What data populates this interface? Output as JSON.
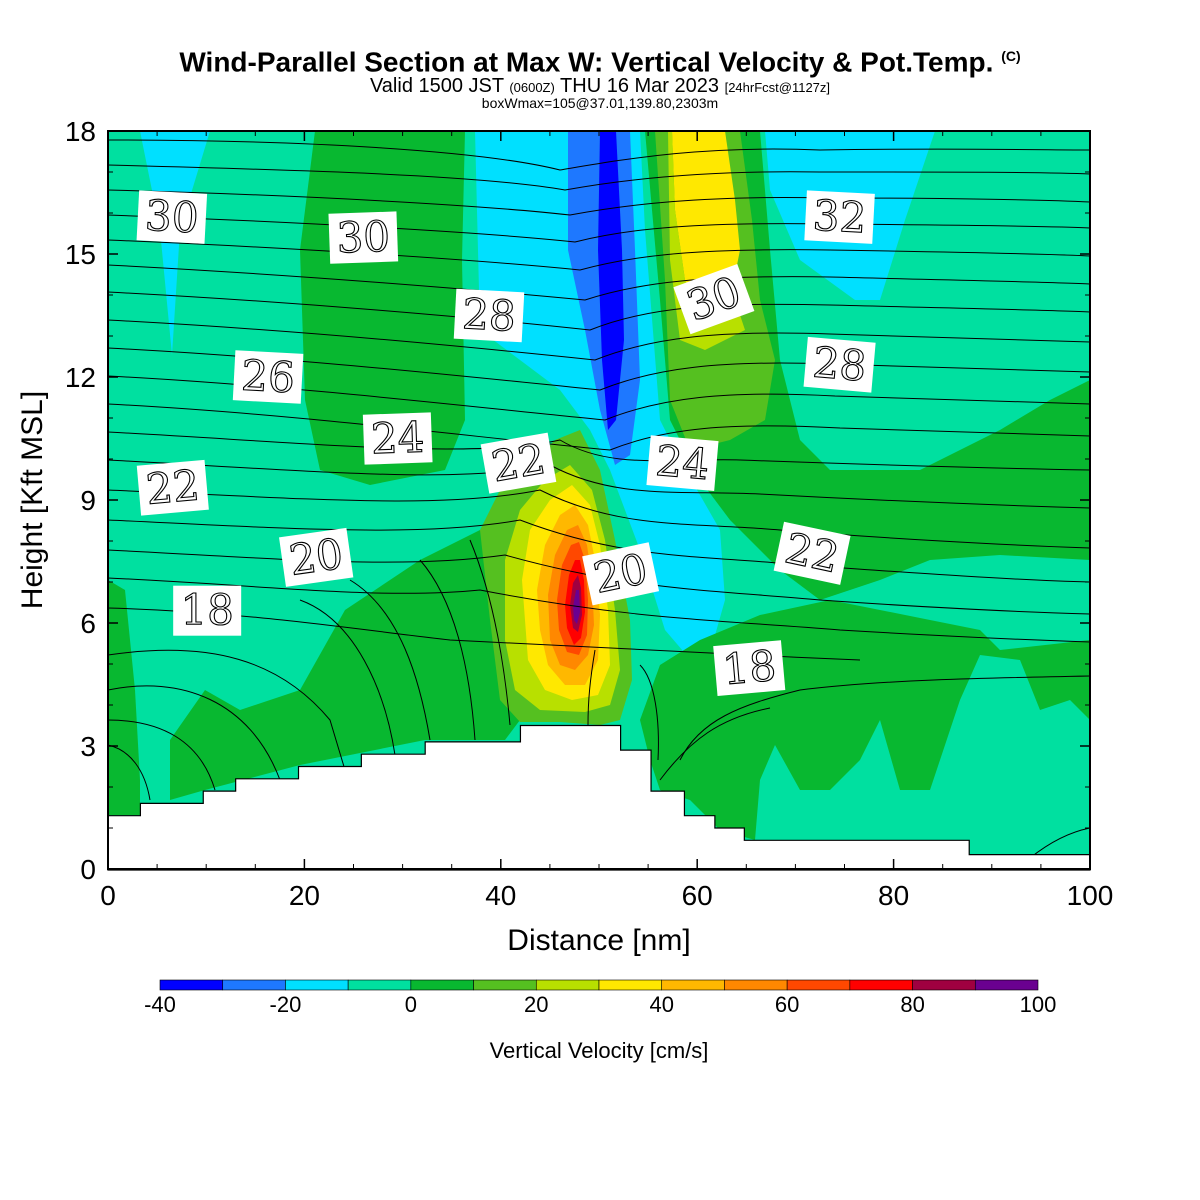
{
  "title": {
    "main": "Wind-Parallel Section at Max W: Vertical Velocity & Pot.Temp.",
    "copyright": "(C)",
    "valid_prefix": "Valid 1500 JST",
    "valid_utc": "(0600Z)",
    "valid_suffix": "THU 16 Mar 2023",
    "forecast": "[24hrFcst@1127z]",
    "box": "boxWmax=105@37.01,139.80,2303m"
  },
  "chart_data": {
    "type": "heatmap",
    "description_variables": [
      "vertical velocity (shaded)",
      "potential temperature (contours)"
    ],
    "xlabel": "Distance [nm]",
    "ylabel": "Height [Kft MSL]",
    "xlim": [
      0,
      100
    ],
    "ylim": [
      0,
      18
    ],
    "x_ticks": [
      0,
      20,
      40,
      60,
      80,
      100
    ],
    "y_ticks": [
      0,
      3,
      6,
      9,
      12,
      15,
      18
    ],
    "colorbar": {
      "label": "Vertical Velocity [cm/s]",
      "ticks": [
        -40,
        -20,
        0,
        20,
        40,
        60,
        80,
        100
      ],
      "levels": [
        -40,
        -30,
        -20,
        -10,
        0,
        10,
        20,
        30,
        40,
        50,
        60,
        70,
        80,
        90,
        100
      ],
      "colors": [
        "#0000ff",
        "#1e78ff",
        "#00e0ff",
        "#00e0a0",
        "#08b830",
        "#55c020",
        "#b8e000",
        "#ffe800",
        "#ffb800",
        "#ff8800",
        "#ff4800",
        "#ff0000",
        "#a00040",
        "#6a0090"
      ]
    },
    "terrain": [
      {
        "x": 0,
        "h": 1.3
      },
      {
        "x": 3.3,
        "h": 1.6
      },
      {
        "x": 9.7,
        "h": 1.9
      },
      {
        "x": 13,
        "h": 2.2
      },
      {
        "x": 19.4,
        "h": 2.5
      },
      {
        "x": 25.8,
        "h": 2.8
      },
      {
        "x": 32.3,
        "h": 3.1
      },
      {
        "x": 42,
        "h": 3.5
      },
      {
        "x": 48.4,
        "h": 3.5
      },
      {
        "x": 51.6,
        "h": 3.5
      },
      {
        "x": 52.2,
        "h": 2.9
      },
      {
        "x": 55.3,
        "h": 1.9
      },
      {
        "x": 58.7,
        "h": 1.3
      },
      {
        "x": 61.8,
        "h": 1.0
      },
      {
        "x": 64.8,
        "h": 0.7
      },
      {
        "x": 87.7,
        "h": 0.35
      },
      {
        "x": 100,
        "h": 0.35
      }
    ],
    "contour_labels": [
      {
        "text": "30",
        "x": 6.5,
        "y": 15.9,
        "angle": 3
      },
      {
        "text": "30",
        "x": 26,
        "y": 15.4,
        "angle": -2
      },
      {
        "text": "28",
        "x": 38.8,
        "y": 13.5,
        "angle": 3
      },
      {
        "text": "30",
        "x": 61.7,
        "y": 13.9,
        "angle": -20
      },
      {
        "text": "32",
        "x": 74.5,
        "y": 15.9,
        "angle": 3
      },
      {
        "text": "26",
        "x": 16.3,
        "y": 12.0,
        "angle": 3
      },
      {
        "text": "28",
        "x": 74.5,
        "y": 12.3,
        "angle": 5
      },
      {
        "text": "24",
        "x": 29.5,
        "y": 10.5,
        "angle": -2
      },
      {
        "text": "22",
        "x": 41.8,
        "y": 9.9,
        "angle": -10
      },
      {
        "text": "24",
        "x": 58.5,
        "y": 9.9,
        "angle": 5
      },
      {
        "text": "22",
        "x": 6.6,
        "y": 9.3,
        "angle": -5
      },
      {
        "text": "20",
        "x": 21.2,
        "y": 7.6,
        "angle": -8
      },
      {
        "text": "22",
        "x": 71.7,
        "y": 7.7,
        "angle": 12
      },
      {
        "text": "20",
        "x": 52.2,
        "y": 7.2,
        "angle": -12
      },
      {
        "text": "18",
        "x": 10.1,
        "y": 6.3,
        "angle": 0
      },
      {
        "text": "18",
        "x": 65.3,
        "y": 4.9,
        "angle": -5
      }
    ]
  }
}
